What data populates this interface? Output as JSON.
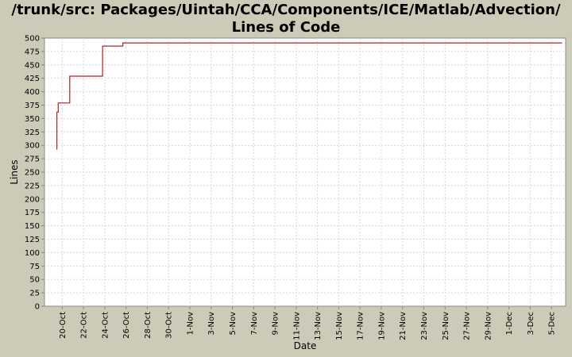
{
  "chart_data": {
    "type": "line",
    "title": [
      "/trunk/src: Packages/Uintah/CCA/Components/ICE/Matlab/Advection/",
      "Lines of Code"
    ],
    "xlabel": "Date",
    "ylabel": "Lines",
    "ylim": [
      0,
      500
    ],
    "yticks": [
      0,
      25,
      50,
      75,
      100,
      125,
      150,
      175,
      200,
      225,
      250,
      275,
      300,
      325,
      350,
      375,
      400,
      425,
      450,
      475,
      500
    ],
    "xticks": [
      "20-Oct",
      "22-Oct",
      "24-Oct",
      "26-Oct",
      "28-Oct",
      "30-Oct",
      "1-Nov",
      "3-Nov",
      "5-Nov",
      "7-Nov",
      "9-Nov",
      "11-Nov",
      "13-Nov",
      "15-Nov",
      "17-Nov",
      "19-Nov",
      "21-Nov",
      "23-Nov",
      "25-Nov",
      "27-Nov",
      "29-Nov",
      "1-Dec",
      "3-Dec",
      "5-Dec"
    ],
    "xlim": [
      "2004-10-18T08:00",
      "2004-12-06T08:00"
    ],
    "grid": true,
    "line_color": "#b22222",
    "series": [
      {
        "step": true,
        "points": [
          {
            "x": "2004-10-19T12:00",
            "y": 292
          },
          {
            "x": "2004-10-19T12:00",
            "y": 362
          },
          {
            "x": "2004-10-19T15:00",
            "y": 362
          },
          {
            "x": "2004-10-19T15:00",
            "y": 379
          },
          {
            "x": "2004-10-20T17:00",
            "y": 379
          },
          {
            "x": "2004-10-20T17:00",
            "y": 429
          },
          {
            "x": "2004-10-23T19:00",
            "y": 429
          },
          {
            "x": "2004-10-23T19:00",
            "y": 485
          },
          {
            "x": "2004-10-25T17:00",
            "y": 485
          },
          {
            "x": "2004-10-25T17:00",
            "y": 491
          },
          {
            "x": "2004-12-06T00:00",
            "y": 491
          }
        ]
      }
    ]
  }
}
